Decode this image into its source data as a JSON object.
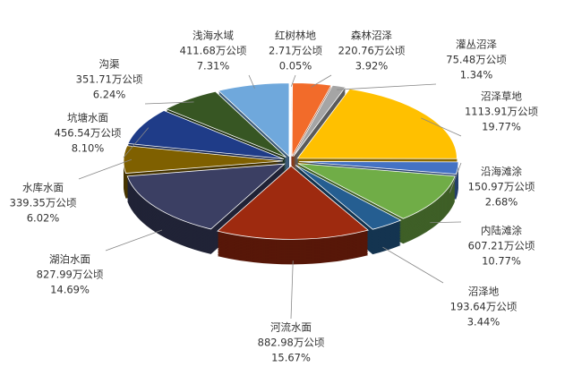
{
  "chart_data": {
    "type": "pie3d",
    "categories": [
      "红树林地",
      "森林沼泽",
      "灌丛沼泽",
      "沼泽草地",
      "沿海滩涂",
      "内陆滩涂",
      "沼泽地",
      "河流水面",
      "湖泊水面",
      "水库水面",
      "坑塘水面",
      "沟渠",
      "浅海水域"
    ],
    "values": [
      2.71,
      220.76,
      75.48,
      1113.91,
      150.97,
      607.21,
      193.64,
      882.98,
      827.99,
      339.35,
      456.54,
      351.71,
      411.68
    ],
    "value_labels": [
      "2.71万公顷",
      "220.76万公顷",
      "75.48万公顷",
      "1113.91万公顷",
      "150.97万公顷",
      "607.21万公顷",
      "193.64万公顷",
      "882.98万公顷",
      "827.99万公顷",
      "339.35万公顷",
      "456.54万公顷",
      "351.71万公顷",
      "411.68万公顷"
    ],
    "percentages": [
      0.05,
      3.92,
      1.34,
      19.77,
      2.68,
      10.77,
      3.44,
      15.67,
      14.69,
      6.02,
      8.1,
      6.24,
      7.31
    ],
    "percentage_labels": [
      "0.05%",
      "3.92%",
      "1.34%",
      "19.77%",
      "2.68%",
      "10.77%",
      "3.44%",
      "15.67%",
      "14.69%",
      "6.02%",
      "8.10%",
      "6.24%",
      "7.31%"
    ],
    "colors": [
      "#c00000",
      "#f26b2a",
      "#a5a5a5",
      "#ffc000",
      "#4472c4",
      "#70ad47",
      "#255e91",
      "#9e2a0f",
      "#3b3f63",
      "#7f6000",
      "#1f3c88",
      "#375623",
      "#6fa8dc"
    ]
  }
}
